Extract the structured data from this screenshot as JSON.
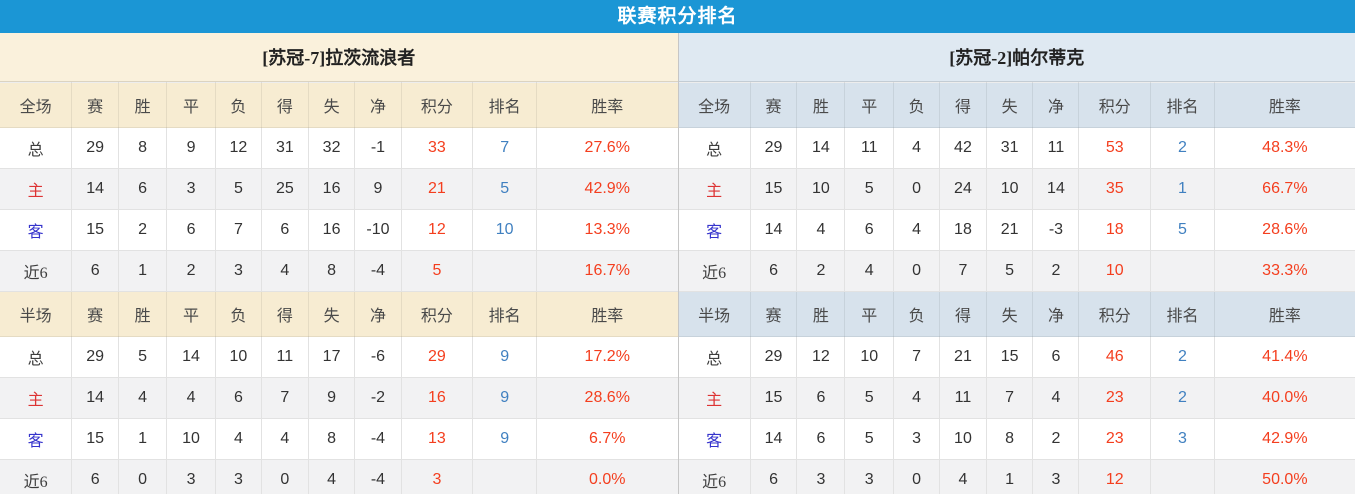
{
  "title": "联赛积分排名",
  "stat_columns": [
    "赛",
    "胜",
    "平",
    "负",
    "得",
    "失",
    "净",
    "积分",
    "排名",
    "胜率"
  ],
  "colors": {
    "accent_blue": "#1b96d5",
    "points_and_rate": "#f43e1e",
    "rank_blue": "#4080c0",
    "home_label_red": "#dd3333",
    "away_label_blue": "#3533cc",
    "left_team_header_bg": "#faf1dc",
    "left_column_header_bg": "#f7ecd2",
    "right_team_header_bg": "#dfe9f2",
    "right_column_header_bg": "#d7e2ec",
    "alt_row_bg": "#f2f2f3"
  },
  "teams": [
    {
      "name": "[苏冠-7]拉茨流浪者",
      "sections": [
        {
          "label": "全场",
          "rows": [
            {
              "key": "total",
              "label": "总",
              "values": [
                "29",
                "8",
                "9",
                "12",
                "31",
                "32",
                "-1"
              ],
              "points": "33",
              "rank": "7",
              "rate": "27.6%"
            },
            {
              "key": "home",
              "label": "主",
              "values": [
                "14",
                "6",
                "3",
                "5",
                "25",
                "16",
                "9"
              ],
              "points": "21",
              "rank": "5",
              "rate": "42.9%"
            },
            {
              "key": "away",
              "label": "客",
              "values": [
                "15",
                "2",
                "6",
                "7",
                "6",
                "16",
                "-10"
              ],
              "points": "12",
              "rank": "10",
              "rate": "13.3%"
            },
            {
              "key": "last6",
              "label": "近6",
              "values": [
                "6",
                "1",
                "2",
                "3",
                "4",
                "8",
                "-4"
              ],
              "points": "5",
              "rank": "",
              "rate": "16.7%"
            }
          ]
        },
        {
          "label": "半场",
          "rows": [
            {
              "key": "total",
              "label": "总",
              "values": [
                "29",
                "5",
                "14",
                "10",
                "11",
                "17",
                "-6"
              ],
              "points": "29",
              "rank": "9",
              "rate": "17.2%"
            },
            {
              "key": "home",
              "label": "主",
              "values": [
                "14",
                "4",
                "4",
                "6",
                "7",
                "9",
                "-2"
              ],
              "points": "16",
              "rank": "9",
              "rate": "28.6%"
            },
            {
              "key": "away",
              "label": "客",
              "values": [
                "15",
                "1",
                "10",
                "4",
                "4",
                "8",
                "-4"
              ],
              "points": "13",
              "rank": "9",
              "rate": "6.7%"
            },
            {
              "key": "last6",
              "label": "近6",
              "values": [
                "6",
                "0",
                "3",
                "3",
                "0",
                "4",
                "-4"
              ],
              "points": "3",
              "rank": "",
              "rate": "0.0%"
            }
          ]
        }
      ]
    },
    {
      "name": "[苏冠-2]帕尔蒂克",
      "sections": [
        {
          "label": "全场",
          "rows": [
            {
              "key": "total",
              "label": "总",
              "values": [
                "29",
                "14",
                "11",
                "4",
                "42",
                "31",
                "11"
              ],
              "points": "53",
              "rank": "2",
              "rate": "48.3%"
            },
            {
              "key": "home",
              "label": "主",
              "values": [
                "15",
                "10",
                "5",
                "0",
                "24",
                "10",
                "14"
              ],
              "points": "35",
              "rank": "1",
              "rate": "66.7%"
            },
            {
              "key": "away",
              "label": "客",
              "values": [
                "14",
                "4",
                "6",
                "4",
                "18",
                "21",
                "-3"
              ],
              "points": "18",
              "rank": "5",
              "rate": "28.6%"
            },
            {
              "key": "last6",
              "label": "近6",
              "values": [
                "6",
                "2",
                "4",
                "0",
                "7",
                "5",
                "2"
              ],
              "points": "10",
              "rank": "",
              "rate": "33.3%"
            }
          ]
        },
        {
          "label": "半场",
          "rows": [
            {
              "key": "total",
              "label": "总",
              "values": [
                "29",
                "12",
                "10",
                "7",
                "21",
                "15",
                "6"
              ],
              "points": "46",
              "rank": "2",
              "rate": "41.4%"
            },
            {
              "key": "home",
              "label": "主",
              "values": [
                "15",
                "6",
                "5",
                "4",
                "11",
                "7",
                "4"
              ],
              "points": "23",
              "rank": "2",
              "rate": "40.0%"
            },
            {
              "key": "away",
              "label": "客",
              "values": [
                "14",
                "6",
                "5",
                "3",
                "10",
                "8",
                "2"
              ],
              "points": "23",
              "rank": "3",
              "rate": "42.9%"
            },
            {
              "key": "last6",
              "label": "近6",
              "values": [
                "6",
                "3",
                "3",
                "0",
                "4",
                "1",
                "3"
              ],
              "points": "12",
              "rank": "",
              "rate": "50.0%"
            }
          ]
        }
      ]
    }
  ]
}
